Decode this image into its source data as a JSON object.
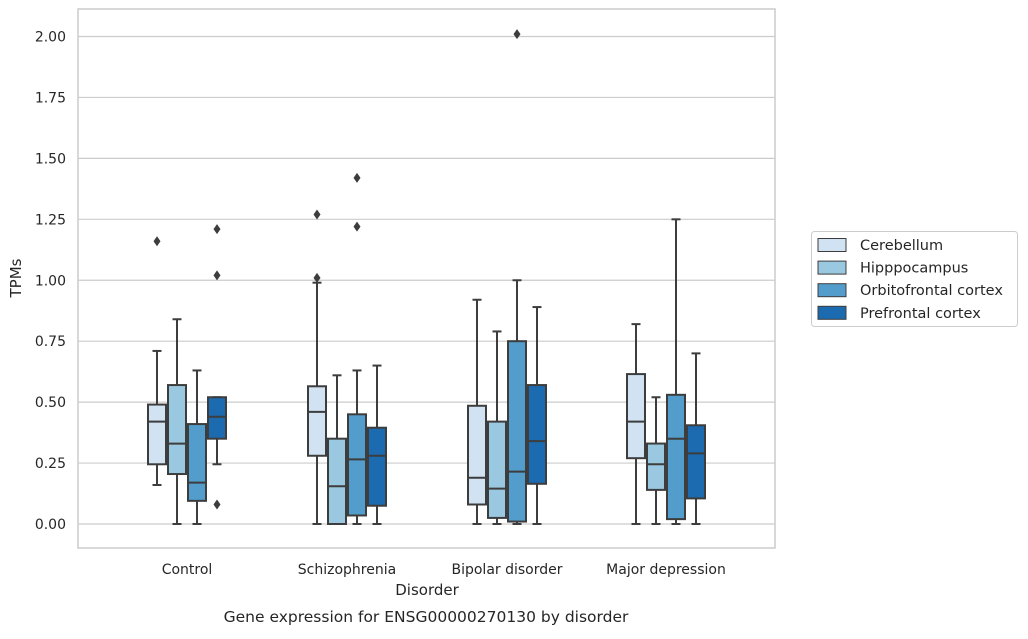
{
  "colors": {
    "Cerebellum": "#d1e3f3",
    "Hipppocampus": "#9ac8e1",
    "Orbitofrontal cortex": "#529dcc",
    "Prefrontal cortex": "#1c6aaf",
    "grid": "#cccccc",
    "box_edge": "#3d3d3d",
    "frame": "#cccccc"
  },
  "caption": "Gene expression for ENSG00000270130 by disorder",
  "chart_data": {
    "type": "boxplot",
    "xlabel": "Disorder",
    "ylabel": "TPMs",
    "ylim": [
      -0.1,
      2.12
    ],
    "yticks": [
      "0.00",
      "0.25",
      "0.50",
      "0.75",
      "1.00",
      "1.25",
      "1.50",
      "1.75",
      "2.00"
    ],
    "grid": true,
    "legend_position": "right",
    "categories": [
      "Control",
      "Schizophrenia",
      "Bipolar disorder",
      "Major depression"
    ],
    "series": [
      {
        "name": "Cerebellum",
        "boxes": [
          {
            "whislo": 0.16,
            "q1": 0.245,
            "med": 0.42,
            "q3": 0.49,
            "whishi": 0.71,
            "fliers": [
              1.16
            ]
          },
          {
            "whislo": 0.0,
            "q1": 0.28,
            "med": 0.46,
            "q3": 0.565,
            "whishi": 0.99,
            "fliers": [
              1.01,
              1.27
            ]
          },
          {
            "whislo": 0.0,
            "q1": 0.08,
            "med": 0.19,
            "q3": 0.485,
            "whishi": 0.92,
            "fliers": []
          },
          {
            "whislo": 0.0,
            "q1": 0.27,
            "med": 0.42,
            "q3": 0.615,
            "whishi": 0.82,
            "fliers": []
          }
        ]
      },
      {
        "name": "Hipppocampus",
        "boxes": [
          {
            "whislo": 0.0,
            "q1": 0.205,
            "med": 0.33,
            "q3": 0.57,
            "whishi": 0.84,
            "fliers": []
          },
          {
            "whislo": 0.0,
            "q1": 0.0,
            "med": 0.155,
            "q3": 0.35,
            "whishi": 0.61,
            "fliers": []
          },
          {
            "whislo": 0.0,
            "q1": 0.025,
            "med": 0.145,
            "q3": 0.42,
            "whishi": 0.79,
            "fliers": []
          },
          {
            "whislo": 0.0,
            "q1": 0.14,
            "med": 0.245,
            "q3": 0.33,
            "whishi": 0.52,
            "fliers": []
          }
        ]
      },
      {
        "name": "Orbitofrontal cortex",
        "boxes": [
          {
            "whislo": 0.0,
            "q1": 0.095,
            "med": 0.17,
            "q3": 0.41,
            "whishi": 0.63,
            "fliers": []
          },
          {
            "whislo": 0.0,
            "q1": 0.035,
            "med": 0.265,
            "q3": 0.45,
            "whishi": 0.63,
            "fliers": [
              1.22,
              1.42
            ]
          },
          {
            "whislo": 0.0,
            "q1": 0.01,
            "med": 0.215,
            "q3": 0.75,
            "whishi": 1.0,
            "fliers": [
              2.01
            ]
          },
          {
            "whislo": 0.0,
            "q1": 0.02,
            "med": 0.35,
            "q3": 0.53,
            "whishi": 1.25,
            "fliers": []
          }
        ]
      },
      {
        "name": "Prefrontal cortex",
        "boxes": [
          {
            "whislo": 0.245,
            "q1": 0.35,
            "med": 0.44,
            "q3": 0.52,
            "whishi": 0.52,
            "fliers": [
              0.08,
              1.02,
              1.21
            ]
          },
          {
            "whislo": 0.0,
            "q1": 0.075,
            "med": 0.28,
            "q3": 0.395,
            "whishi": 0.65,
            "fliers": []
          },
          {
            "whislo": 0.0,
            "q1": 0.165,
            "med": 0.34,
            "q3": 0.57,
            "whishi": 0.89,
            "fliers": []
          },
          {
            "whislo": 0.0,
            "q1": 0.105,
            "med": 0.29,
            "q3": 0.405,
            "whishi": 0.7,
            "fliers": []
          }
        ]
      }
    ]
  }
}
